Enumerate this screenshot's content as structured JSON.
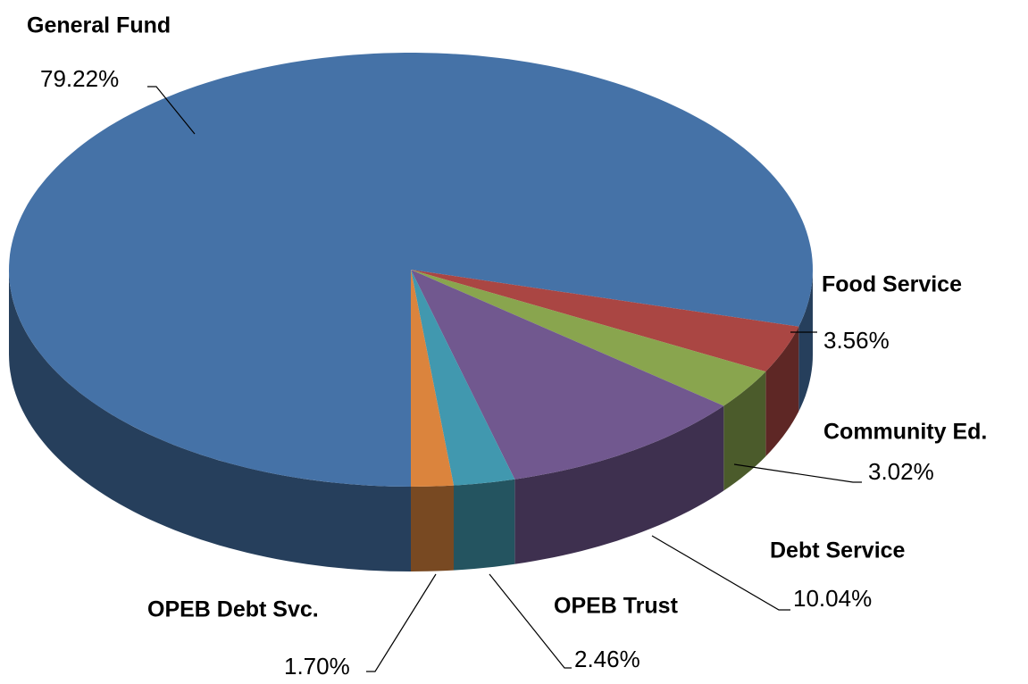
{
  "chart_data": {
    "type": "pie",
    "categories": [
      "General Fund",
      "Food Service",
      "Community Ed.",
      "Debt Service",
      "OPEB Trust",
      "OPEB Debt Svc."
    ],
    "values": [
      79.22,
      3.56,
      3.02,
      10.04,
      2.46,
      1.7
    ],
    "value_labels": [
      "79.22%",
      "3.56%",
      "3.02%",
      "10.04%",
      "2.46%",
      "1.70%"
    ],
    "colors": [
      "#4572a7",
      "#aa4643",
      "#89a54e",
      "#71588f",
      "#4198af",
      "#db843d"
    ]
  }
}
